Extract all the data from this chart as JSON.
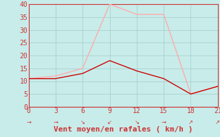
{
  "xlabel": "Vent moyen/en rafales ( km/h )",
  "x": [
    0,
    3,
    6,
    9,
    12,
    15,
    18,
    21
  ],
  "y_moyen": [
    11,
    11,
    13,
    18,
    14,
    11,
    5,
    8
  ],
  "y_rafales": [
    11,
    12,
    15,
    40,
    36,
    36,
    5,
    8
  ],
  "color_moyen": "#cc0000",
  "color_rafales": "#ffaaaa",
  "bg_color": "#c8ecea",
  "grid_color": "#a0ccc8",
  "axis_color": "#cc3333",
  "xlim": [
    0,
    21
  ],
  "ylim": [
    0,
    40
  ],
  "xticks": [
    0,
    3,
    6,
    9,
    12,
    15,
    18,
    21
  ],
  "yticks": [
    0,
    5,
    10,
    15,
    20,
    25,
    30,
    35,
    40
  ],
  "arrow_chars": [
    "→",
    "→",
    "↘",
    "↙",
    "↘",
    "→",
    "↗",
    "↗"
  ],
  "xlabel_fontsize": 8,
  "tick_fontsize": 7,
  "arrow_fontsize": 6
}
